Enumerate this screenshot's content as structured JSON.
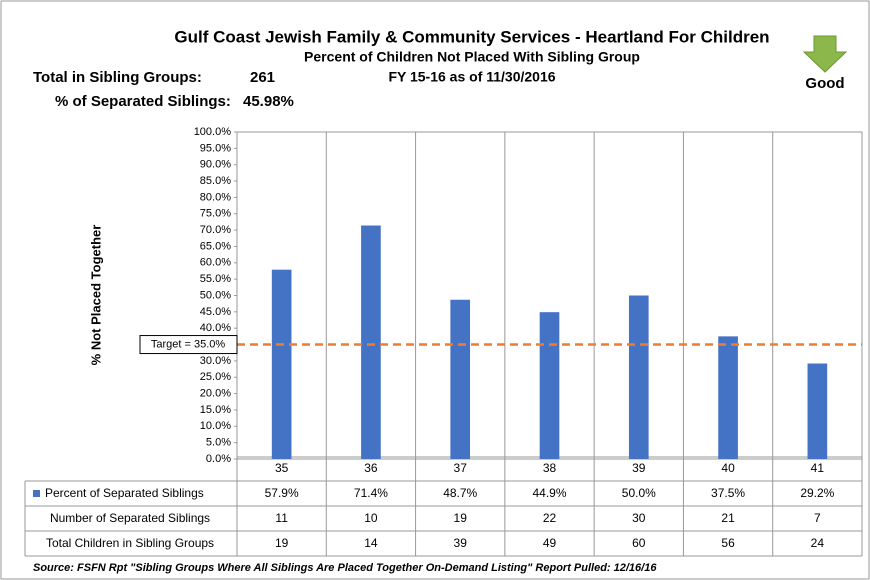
{
  "chart_data": {
    "type": "bar",
    "title": "Gulf Coast Jewish Family & Community Services - Heartland For Children",
    "subtitle": "Percent of Children Not Placed With Sibling Group",
    "period": "FY 15-16 as of 11/30/2016",
    "summary": [
      {
        "label": "Total in Sibling Groups:",
        "value": "261"
      },
      {
        "label": "% of Separated Siblings:",
        "value": "45.98%"
      }
    ],
    "indicator": "Good",
    "y_label": "% Not Placed Together",
    "categories": [
      "35",
      "36",
      "37",
      "38",
      "39",
      "40",
      "41"
    ],
    "series": [
      {
        "name": "Percent of Separated Siblings",
        "color": "#4472c4",
        "values": [
          57.9,
          71.4,
          48.7,
          44.9,
          50.0,
          37.5,
          29.2
        ],
        "value_labels": [
          "57.9%",
          "71.4%",
          "48.7%",
          "44.9%",
          "50.0%",
          "37.5%",
          "29.2%"
        ]
      }
    ],
    "table_rows": [
      {
        "name": "Number of Separated Siblings",
        "values": [
          11,
          10,
          19,
          22,
          30,
          21,
          7
        ]
      },
      {
        "name": "Total Children in Sibling Groups",
        "values": [
          19,
          14,
          39,
          49,
          60,
          56,
          24
        ]
      }
    ],
    "target": {
      "value": 35,
      "label": "Target = 35.0%",
      "color": "#ed7d31"
    },
    "ylim": [
      0,
      100
    ],
    "yticks": [
      {
        "value": 0,
        "label": "0.0%"
      },
      {
        "value": 5,
        "label": "5.0%"
      },
      {
        "value": 10,
        "label": "10.0%"
      },
      {
        "value": 15,
        "label": "15.0%"
      },
      {
        "value": 20,
        "label": "20.0%"
      },
      {
        "value": 25,
        "label": "25.0%"
      },
      {
        "value": 30,
        "label": "30.0%"
      },
      {
        "value": 35,
        "label": "35.0%"
      },
      {
        "value": 40,
        "label": "40.0%"
      },
      {
        "value": 45,
        "label": "45.0%"
      },
      {
        "value": 50,
        "label": "50.0%"
      },
      {
        "value": 55,
        "label": "55.0%"
      },
      {
        "value": 60,
        "label": "60.0%"
      },
      {
        "value": 65,
        "label": "65.0%"
      },
      {
        "value": 70,
        "label": "70.0%"
      },
      {
        "value": 75,
        "label": "75.0%"
      },
      {
        "value": 80,
        "label": "80.0%"
      },
      {
        "value": 85,
        "label": "85.0%"
      },
      {
        "value": 90,
        "label": "90.0%"
      },
      {
        "value": 95,
        "label": "95.0%"
      },
      {
        "value": 100,
        "label": "100.0%"
      }
    ],
    "grid": false,
    "source": "Source: FSFN Rpt \"Sibling Groups Where All Siblings Are Placed Together On-Demand Listing\"  Report Pulled: 12/16/16"
  }
}
